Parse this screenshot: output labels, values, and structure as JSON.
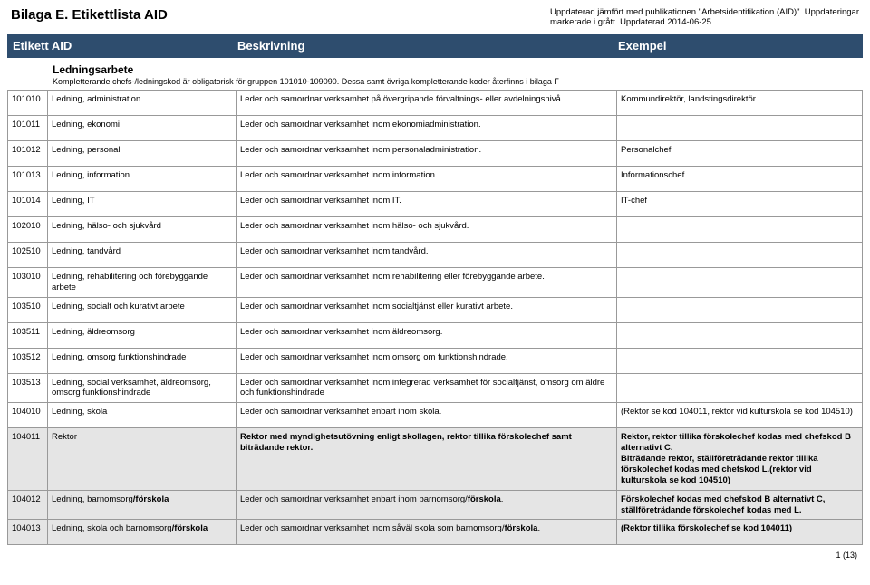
{
  "header": {
    "title": "Bilaga E. Etikettlista AID",
    "note_line1": "Uppdaterad jämfört med publikationen \"Arbetsidentifikation (AID)\". Uppdateringar",
    "note_line2": "markerade i grått. Uppdaterad 2014-06-25"
  },
  "columns": {
    "c1": "Etikett AID",
    "c2": "Beskrivning",
    "c3": "Exempel"
  },
  "section": {
    "title": "Ledningsarbete",
    "note": "Kompletterande chefs-/ledningskod är obligatorisk för gruppen 101010-109090. Dessa samt övriga kompletterande koder återfinns i bilaga F"
  },
  "rows": [
    {
      "code": "101010",
      "name": "Ledning, administration",
      "desc": "Leder och samordnar verksamhet på övergripande förvaltnings- eller avdelningsnivå.",
      "ex": "Kommundirektör, landstingsdirektör"
    },
    {
      "code": "101011",
      "name": "Ledning, ekonomi",
      "desc": "Leder och samordnar verksamhet inom ekonomiadministration.",
      "ex": ""
    },
    {
      "code": "101012",
      "name": "Ledning, personal",
      "desc": "Leder och samordnar verksamhet inom personaladministration.",
      "ex": "Personalchef"
    },
    {
      "code": "101013",
      "name": "Ledning, information",
      "desc": "Leder och samordnar verksamhet inom information.",
      "ex": "Informationschef"
    },
    {
      "code": "101014",
      "name": "Ledning, IT",
      "desc": "Leder och samordnar verksamhet inom IT.",
      "ex": "IT-chef"
    },
    {
      "code": "102010",
      "name": "Ledning, hälso- och sjukvård",
      "desc": "Leder och samordnar verksamhet inom hälso- och sjukvård.",
      "ex": ""
    },
    {
      "code": "102510",
      "name": "Ledning, tandvård",
      "desc": "Leder och samordnar verksamhet inom tandvård.",
      "ex": ""
    },
    {
      "code": "103010",
      "name": "Ledning, rehabilitering och förebyggande arbete",
      "desc": "Leder och samordnar verksamhet inom  rehabilitering eller förebyggande arbete.",
      "ex": ""
    },
    {
      "code": "103510",
      "name": "Ledning, socialt och kurativt arbete",
      "desc": "Leder och samordnar verksamhet inom socialtjänst eller kurativt arbete.",
      "ex": ""
    },
    {
      "code": "103511",
      "name": "Ledning, äldreomsorg",
      "desc": "Leder och samordnar verksamhet inom  äldreomsorg.",
      "ex": ""
    },
    {
      "code": "103512",
      "name": "Ledning, omsorg funktionshindrade",
      "desc": "Leder och samordnar verksamhet inom omsorg om funktionshindrade.",
      "ex": ""
    },
    {
      "code": "103513",
      "name": "Ledning, social verksamhet, äldreomsorg, omsorg funktionshindrade",
      "desc": "Leder och samordnar verksamhet inom integrerad verksamhet för socialtjänst, omsorg om äldre och funktionshindrade",
      "ex": ""
    },
    {
      "code": "104010",
      "name": "Ledning, skola",
      "desc": "Leder och samordnar verksamhet enbart inom skola.",
      "ex": "(Rektor se kod 104011, rektor vid kulturskola se kod 104510)"
    },
    {
      "code": "104011",
      "name": "Rektor",
      "desc_html": "<span class='bold'>Rektor med myndighetsutövning enligt skollagen, rektor tillika förskolechef samt biträdande rektor.</span>",
      "ex_html": "<span class='bold'>Rektor, rektor tillika förskolechef kodas med chefskod B alternativt C.<br>Biträdande rektor, ställföreträdande rektor tillika förskolechef kodas med chefskod L.(rektor vid kulturskola se kod 104510)</span>",
      "shade": true
    },
    {
      "code": "104012",
      "name_html": "Ledning, barnomsorg<span class='bold'>/förskola</span>",
      "desc_html": "Leder och samordnar verksamhet enbart inom barnomsorg/<span class='bold'>förskola</span>.",
      "ex_html": "<span class='bold'>Förskolechef kodas med chefskod B alternativt C, ställföreträdande förskolechef kodas med L.</span>",
      "shade": true
    },
    {
      "code": "104013",
      "name_html": "Ledning, skola och barnomsorg<span class='bold'>/förskola</span>",
      "desc_html": "Leder och samordnar verksamhet inom såväl skola som barnomsorg/<span class='bold'>förskola</span>.",
      "ex_html": "<span class='bold'>(Rektor tillika förskolechef se kod 104011)</span>",
      "shade": true
    }
  ],
  "footer": "1 (13)"
}
